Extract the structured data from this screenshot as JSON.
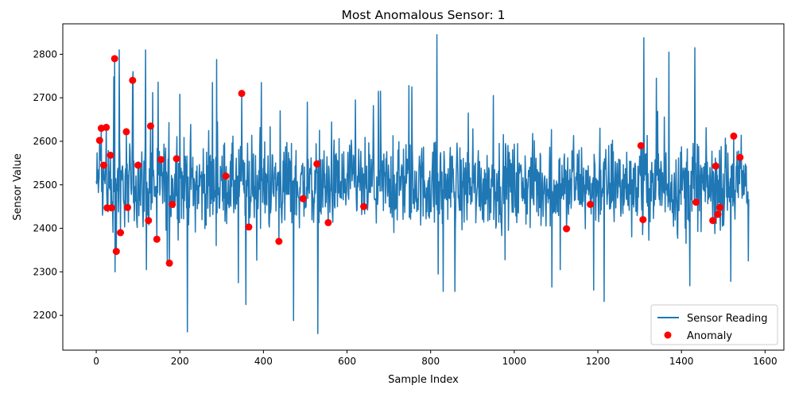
{
  "chart_data": {
    "type": "line",
    "title": "Most Anomalous Sensor: 1",
    "xlabel": "Sample Index",
    "ylabel": "Sensor Value",
    "xlim": [
      -80,
      1645
    ],
    "ylim": [
      2120,
      2870
    ],
    "x_ticks": [
      0,
      200,
      400,
      600,
      800,
      1000,
      1200,
      1400,
      1600
    ],
    "x_tick_labels": [
      "0",
      "200",
      "400",
      "600",
      "800",
      "1000",
      "1200",
      "1400",
      "1600"
    ],
    "y_ticks": [
      2200,
      2300,
      2400,
      2500,
      2600,
      2700,
      2800
    ],
    "y_tick_labels": [
      "2200",
      "2300",
      "2400",
      "2500",
      "2600",
      "2700",
      "2800"
    ],
    "grid": false,
    "legend_position": "lower right",
    "n_samples": 1562,
    "series": [
      {
        "name": "Sensor Reading",
        "kind": "line",
        "color": "#1f77b4",
        "baseline": 2500,
        "spikes": [
          [
            8,
            2690
          ],
          [
            15,
            2430
          ],
          [
            42,
            2748
          ],
          [
            45,
            2300
          ],
          [
            55,
            2810
          ],
          [
            72,
            2315
          ],
          [
            88,
            2760
          ],
          [
            118,
            2810
          ],
          [
            120,
            2305
          ],
          [
            135,
            2712
          ],
          [
            170,
            2320
          ],
          [
            200,
            2708
          ],
          [
            218,
            2162
          ],
          [
            278,
            2735
          ],
          [
            288,
            2788
          ],
          [
            340,
            2275
          ],
          [
            348,
            2718
          ],
          [
            358,
            2225
          ],
          [
            395,
            2735
          ],
          [
            440,
            2670
          ],
          [
            472,
            2188
          ],
          [
            505,
            2690
          ],
          [
            528,
            2718
          ],
          [
            530,
            2158
          ],
          [
            620,
            2695
          ],
          [
            640,
            2220
          ],
          [
            680,
            2715
          ],
          [
            748,
            2728
          ],
          [
            755,
            2725
          ],
          [
            815,
            2845
          ],
          [
            818,
            2295
          ],
          [
            830,
            2255
          ],
          [
            858,
            2255
          ],
          [
            890,
            2665
          ],
          [
            950,
            2705
          ],
          [
            1090,
            2265
          ],
          [
            1110,
            2305
          ],
          [
            1190,
            2258
          ],
          [
            1205,
            2630
          ],
          [
            1215,
            2232
          ],
          [
            1310,
            2838
          ],
          [
            1340,
            2745
          ],
          [
            1370,
            2805
          ],
          [
            1420,
            2268
          ],
          [
            1432,
            2815
          ],
          [
            1475,
            2405
          ],
          [
            1518,
            2278
          ],
          [
            1560,
            2325
          ]
        ]
      },
      {
        "name": "Anomaly",
        "kind": "scatter",
        "color": "#ff0000",
        "points": [
          [
            8,
            2602
          ],
          [
            12,
            2630
          ],
          [
            18,
            2545
          ],
          [
            24,
            2632
          ],
          [
            26,
            2447
          ],
          [
            34,
            2568
          ],
          [
            37,
            2447
          ],
          [
            44,
            2790
          ],
          [
            48,
            2347
          ],
          [
            58,
            2390
          ],
          [
            72,
            2622
          ],
          [
            75,
            2448
          ],
          [
            87,
            2740
          ],
          [
            100,
            2545
          ],
          [
            125,
            2418
          ],
          [
            130,
            2635
          ],
          [
            145,
            2375
          ],
          [
            155,
            2558
          ],
          [
            175,
            2320
          ],
          [
            182,
            2455
          ],
          [
            192,
            2560
          ],
          [
            310,
            2520
          ],
          [
            348,
            2710
          ],
          [
            365,
            2403
          ],
          [
            437,
            2370
          ],
          [
            495,
            2468
          ],
          [
            528,
            2548
          ],
          [
            555,
            2413
          ],
          [
            640,
            2450
          ],
          [
            1125,
            2399
          ],
          [
            1182,
            2455
          ],
          [
            1303,
            2590
          ],
          [
            1308,
            2420
          ],
          [
            1435,
            2460
          ],
          [
            1475,
            2418
          ],
          [
            1482,
            2543
          ],
          [
            1487,
            2432
          ],
          [
            1492,
            2448
          ],
          [
            1525,
            2612
          ],
          [
            1540,
            2563
          ]
        ]
      }
    ]
  },
  "legend": {
    "items": [
      {
        "label": "Sensor Reading",
        "marker": "line",
        "color": "#1f77b4"
      },
      {
        "label": "Anomaly",
        "marker": "dot",
        "color": "#ff0000"
      }
    ]
  }
}
